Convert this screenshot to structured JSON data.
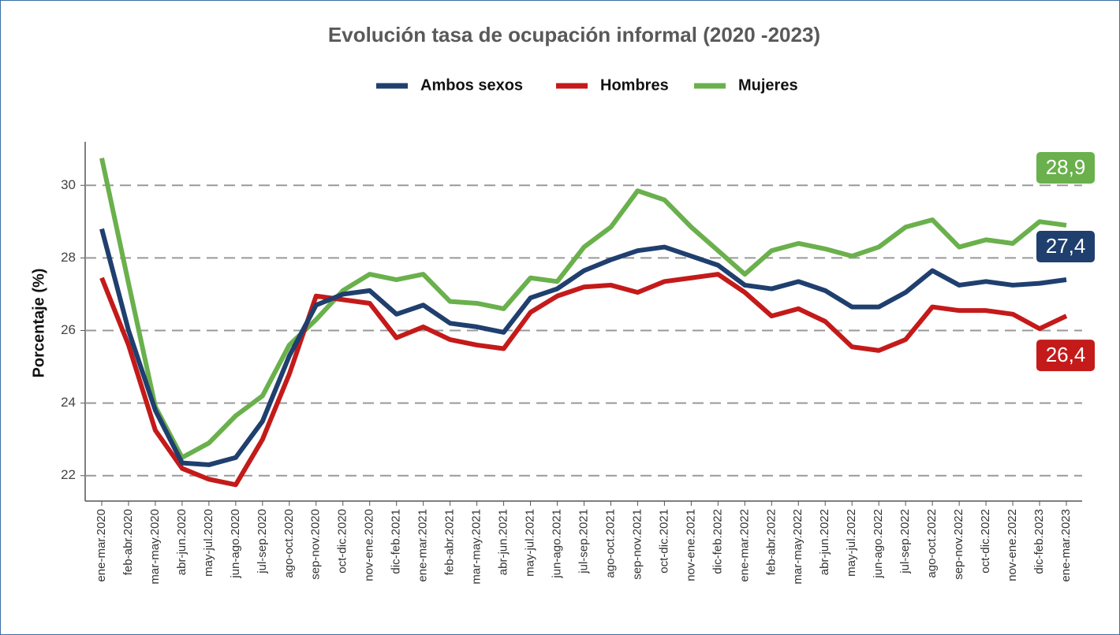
{
  "chart_data": {
    "type": "line",
    "title": "Evolución tasa de ocupación informal (2020 -2023)",
    "y_label": "Porcentaje (%)",
    "categories": [
      "ene-mar.2020",
      "feb-abr.2020",
      "mar-may.2020",
      "abr-jun.2020",
      "may-jul.2020",
      "jun-ago.2020",
      "jul-sep.2020",
      "ago-oct.2020",
      "sep-nov.2020",
      "oct-dic.2020",
      "nov-ene.2020",
      "dic-feb.2021",
      "ene-mar.2021",
      "feb-abr.2021",
      "mar-may.2021",
      "abr-jun.2021",
      "may-jul.2021",
      "jun-ago.2021",
      "jul-sep.2021",
      "ago-oct.2021",
      "sep-nov.2021",
      "oct-dic.2021",
      "nov-ene.2021",
      "dic-feb.2022",
      "ene-mar.2022",
      "feb-abr.2022",
      "mar-may.2022",
      "abr-jun.2022",
      "may-jul.2022",
      "jun-ago.2022",
      "jul-sep.2022",
      "ago-oct.2022",
      "sep-nov.2022",
      "oct-dic.2022",
      "nov-ene.2022",
      "dic-feb.2023",
      "ene-mar.2023"
    ],
    "series": [
      {
        "name": "Ambos sexos",
        "color": "#1f3f6e",
        "values": [
          28.8,
          26.0,
          23.8,
          22.35,
          22.3,
          22.5,
          23.5,
          25.3,
          26.7,
          27.0,
          27.1,
          26.45,
          26.7,
          26.2,
          26.1,
          25.95,
          26.9,
          27.15,
          27.65,
          27.95,
          28.2,
          28.3,
          28.05,
          27.8,
          27.25,
          27.15,
          27.35,
          27.1,
          26.65,
          26.65,
          27.05,
          27.65,
          27.25,
          27.35,
          27.25,
          27.3,
          27.4
        ],
        "value_labels": [
          null,
          null,
          null,
          null,
          null,
          null,
          null,
          null,
          null,
          null,
          null,
          null,
          null,
          null,
          null,
          null,
          null,
          null,
          null,
          null,
          null,
          null,
          null,
          null,
          null,
          null,
          null,
          null,
          null,
          null,
          null,
          null,
          null,
          null,
          null,
          null,
          "27,4"
        ]
      },
      {
        "name": "Hombres",
        "color": "#c41a1a",
        "values": [
          27.45,
          25.6,
          23.25,
          22.2,
          21.9,
          21.75,
          23.0,
          24.8,
          26.95,
          26.85,
          26.75,
          25.8,
          26.1,
          25.75,
          25.6,
          25.5,
          26.5,
          26.95,
          27.2,
          27.25,
          27.05,
          27.35,
          27.45,
          27.55,
          27.05,
          26.4,
          26.6,
          26.25,
          25.55,
          25.45,
          25.75,
          26.65,
          26.55,
          26.55,
          26.45,
          26.05,
          26.4
        ],
        "value_labels": [
          null,
          null,
          null,
          null,
          null,
          null,
          null,
          null,
          null,
          null,
          null,
          null,
          null,
          null,
          null,
          null,
          null,
          null,
          null,
          null,
          null,
          null,
          null,
          null,
          null,
          null,
          null,
          null,
          null,
          null,
          null,
          null,
          null,
          null,
          null,
          null,
          "26,4"
        ]
      },
      {
        "name": "Mujeres",
        "color": "#6ab04c",
        "values": [
          30.75,
          27.3,
          23.9,
          22.5,
          22.9,
          23.65,
          24.2,
          25.6,
          26.3,
          27.1,
          27.55,
          27.4,
          27.55,
          26.8,
          26.75,
          26.6,
          27.45,
          27.35,
          28.3,
          28.85,
          29.85,
          29.6,
          28.85,
          28.2,
          27.55,
          28.2,
          28.4,
          28.25,
          28.05,
          28.3,
          28.85,
          29.05,
          28.3,
          28.5,
          28.4,
          29.0,
          28.9
        ],
        "value_labels": [
          null,
          null,
          null,
          null,
          null,
          null,
          null,
          null,
          null,
          null,
          null,
          null,
          null,
          null,
          null,
          null,
          null,
          null,
          null,
          null,
          null,
          null,
          null,
          null,
          null,
          null,
          null,
          null,
          null,
          null,
          null,
          null,
          null,
          null,
          null,
          null,
          "28,9"
        ]
      }
    ],
    "ylim": [
      21.3,
      31.2
    ],
    "yticks": [
      22,
      24,
      26,
      28,
      30
    ],
    "grid": true,
    "legend": "top"
  }
}
